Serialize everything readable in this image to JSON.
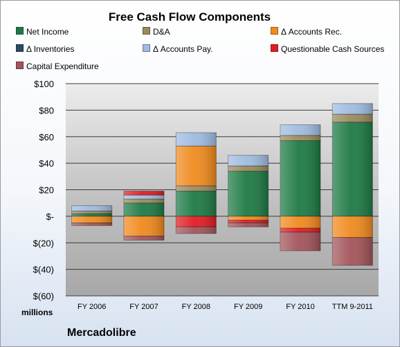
{
  "chart_data": {
    "type": "bar",
    "stacked": true,
    "title": "Free Cash Flow Components",
    "categories": [
      "FY 2006",
      "FY 2007",
      "FY 2008",
      "FY 2009",
      "FY 2010",
      "TTM 9-2011"
    ],
    "ylim": [
      -60,
      100
    ],
    "yticks": [
      -60,
      -40,
      -20,
      0,
      20,
      40,
      60,
      80,
      100
    ],
    "ytick_labels": [
      "$(60)",
      "$(40)",
      "$(20)",
      "$-",
      "$20",
      "$40",
      "$60",
      "$80",
      "$100"
    ],
    "ylabel": "millions",
    "grid": true,
    "legend_position": "top",
    "series": [
      {
        "name": "Net Income",
        "color": "#1e7a45",
        "values": [
          2,
          10,
          19,
          34,
          57,
          71
        ]
      },
      {
        "name": "D&A",
        "color": "#9a8a5c",
        "values": [
          2,
          3,
          4,
          4,
          4,
          6
        ]
      },
      {
        "name": "Δ Accounts Rec.",
        "color": "#f08a1e",
        "values": [
          -5,
          -15,
          30,
          -3,
          -9,
          -16
        ]
      },
      {
        "name": "Δ Inventories",
        "color": "#2d4a68",
        "values": [
          0,
          0,
          0,
          0,
          0,
          0
        ]
      },
      {
        "name": "Δ Accounts Pay.",
        "color": "#9fbbe0",
        "values": [
          4,
          3,
          10,
          8,
          8,
          8
        ]
      },
      {
        "name": "Questionable Cash Sources",
        "color": "#e21c22",
        "values": [
          0,
          3,
          -8,
          -2,
          -3,
          0
        ]
      },
      {
        "name": "Capital Expenditure",
        "color": "#a2545a",
        "values": [
          -2,
          -3,
          -5,
          -3,
          -14,
          -21
        ]
      }
    ]
  },
  "company": "Mercadolibre"
}
